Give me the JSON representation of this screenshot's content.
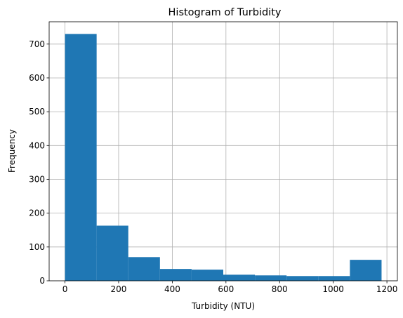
{
  "chart_data": {
    "type": "bar",
    "title": "Histogram of Turbidity",
    "xlabel": "Turbidity (NTU)",
    "ylabel": "Frequency",
    "bins": [
      {
        "start": 0,
        "end": 118,
        "count": 730
      },
      {
        "start": 118,
        "end": 236,
        "count": 163
      },
      {
        "start": 236,
        "end": 354,
        "count": 70
      },
      {
        "start": 354,
        "end": 472,
        "count": 35
      },
      {
        "start": 472,
        "end": 590,
        "count": 33
      },
      {
        "start": 590,
        "end": 708,
        "count": 18
      },
      {
        "start": 708,
        "end": 826,
        "count": 16
      },
      {
        "start": 826,
        "end": 944,
        "count": 14
      },
      {
        "start": 944,
        "end": 1062,
        "count": 14
      },
      {
        "start": 1062,
        "end": 1180,
        "count": 62
      }
    ],
    "xlim": [
      -59,
      1239
    ],
    "ylim": [
      0,
      766
    ],
    "xticks": [
      0,
      200,
      400,
      600,
      800,
      1000,
      1200
    ],
    "yticks": [
      0,
      100,
      200,
      300,
      400,
      500,
      600,
      700
    ],
    "grid": true,
    "bar_color": "#1f77b4"
  }
}
